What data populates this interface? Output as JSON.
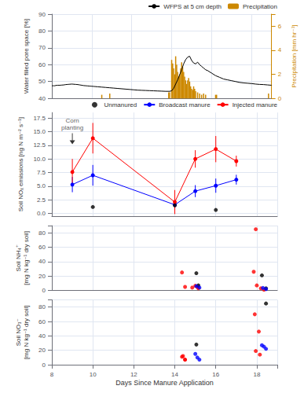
{
  "chart_data": [
    {
      "type": "line",
      "ylabel": "Water filled pore space [%]",
      "y2label": "Precipitation [mm hr⁻¹]",
      "xlim": [
        8,
        19
      ],
      "xticks": [
        8,
        10,
        12,
        14,
        16,
        18
      ],
      "ylim": [
        40,
        90
      ],
      "yticks": [
        40,
        50,
        60,
        70,
        80,
        90
      ],
      "y2lim": [
        0,
        7
      ],
      "y2ticks": [
        0,
        2,
        4,
        6
      ],
      "grid": true,
      "legend": "upper right",
      "tick_labels": "y",
      "series": [
        {
          "name": "WFPS at 5 cm depth",
          "type": "line",
          "color": "black",
          "marker": "none",
          "x": [
            8.0,
            8.05,
            8.1,
            8.15,
            8.2,
            8.3,
            8.4,
            8.5,
            8.6,
            8.7,
            8.8,
            8.9,
            9.0,
            9.1,
            9.2,
            9.3,
            9.4,
            9.5,
            9.6,
            9.7,
            9.8,
            9.9,
            10.0,
            10.1,
            10.2,
            10.3,
            10.5,
            10.7,
            10.9,
            11.1,
            11.3,
            11.5,
            11.7,
            11.9,
            12.1,
            12.3,
            12.5,
            12.7,
            12.9,
            13.1,
            13.3,
            13.5,
            13.7,
            13.9,
            14.0,
            14.1,
            14.2,
            14.3,
            14.4,
            14.5,
            14.6,
            14.7,
            14.8,
            14.9,
            15.0,
            15.1,
            15.2,
            15.3,
            15.4,
            15.5,
            15.6,
            15.7,
            15.8,
            16.0,
            16.2,
            16.4,
            16.6,
            16.8,
            17.0,
            17.2,
            17.4,
            17.6,
            17.8,
            18.0,
            18.2,
            18.4,
            18.6,
            18.8,
            19.0
          ],
          "values": [
            47.5,
            47.5,
            47.5,
            47.5,
            47.7,
            47.8,
            47.8,
            47.9,
            48.0,
            48.2,
            48.3,
            48.4,
            48.5,
            48.4,
            48.3,
            48.2,
            48.0,
            47.8,
            47.6,
            47.5,
            47.4,
            47.3,
            47.2,
            47.1,
            47.0,
            46.9,
            46.7,
            46.5,
            46.3,
            46.1,
            45.9,
            45.7,
            45.5,
            45.3,
            45.1,
            44.9,
            44.8,
            44.7,
            44.6,
            44.5,
            44.4,
            44.3,
            44.2,
            44.2,
            44.5,
            46.0,
            48.5,
            51.0,
            54.0,
            57.0,
            60.5,
            63.0,
            64.5,
            65.0,
            62.5,
            61.0,
            60.5,
            61.5,
            60.0,
            59.0,
            58.0,
            57.0,
            56.5,
            55.0,
            53.5,
            52.5,
            51.5,
            51.0,
            50.5,
            50.0,
            49.5,
            49.2,
            49.0,
            48.8,
            48.5,
            48.3,
            48.2,
            48.0,
            47.8
          ]
        },
        {
          "name": "Precipitation",
          "type": "bar",
          "color": "#CC8800",
          "axis": "y2",
          "x": [
            10.5,
            10.9,
            13.85,
            13.9,
            14.0,
            14.05,
            14.1,
            14.15,
            14.2,
            14.25,
            14.3,
            14.35,
            14.4,
            14.45,
            14.5,
            14.55,
            14.6,
            14.65,
            14.7,
            14.75,
            14.8,
            14.85,
            14.9,
            14.95,
            15.0,
            15.05,
            15.1,
            15.15,
            15.2,
            15.3,
            15.4,
            15.5,
            15.6,
            15.7,
            16.2,
            16.25,
            18.85
          ],
          "values": [
            0.3,
            0.4,
            0.5,
            0.5,
            3.2,
            2.9,
            2.5,
            2.0,
            3.5,
            2.8,
            2.2,
            1.8,
            2.0,
            2.5,
            3.0,
            2.6,
            2.2,
            1.8,
            1.5,
            1.2,
            1.5,
            1.7,
            1.4,
            1.0,
            0.8,
            0.7,
            1.0,
            0.8,
            0.6,
            0.5,
            0.4,
            0.3,
            0.4,
            0.3,
            0.3,
            0.3,
            0.4
          ]
        }
      ]
    },
    {
      "type": "line",
      "ylabel": "Soil NOₓ emissions [ng N m⁻² s⁻¹]",
      "xlim": [
        8,
        19
      ],
      "xticks": [
        8,
        10,
        12,
        14,
        16,
        18
      ],
      "ylim": [
        -0.5,
        18.5
      ],
      "yticks": [
        {
          "value": 0.0,
          "label": "0.0"
        },
        2.5,
        {
          "value": 5.0,
          "label": "5.0"
        },
        7.5,
        {
          "value": 10.0,
          "label": "10.0"
        },
        12.5,
        {
          "value": 15.0,
          "label": "15.0"
        },
        17.5
      ],
      "grid": true,
      "legend": "upper right",
      "tick_labels": "y",
      "annotations": [
        {
          "text": "Corn\nplanting",
          "x": 9.0,
          "y": 12.7
        }
      ],
      "series": [
        {
          "name": "Unmanured",
          "type": "scatter",
          "color": "black",
          "marker": "circle",
          "x": [
            10,
            14,
            16
          ],
          "values": [
            1.2,
            1.5,
            0.65
          ]
        },
        {
          "name": "Broadcast manure",
          "type": "line",
          "color": "blue",
          "marker": "circle",
          "x": [
            9,
            10,
            14,
            15,
            16,
            17
          ],
          "values": [
            5.3,
            7.0,
            1.6,
            4.1,
            5.1,
            6.2
          ],
          "errors": [
            1.4,
            1.9,
            0.9,
            1.1,
            1.3,
            0.9
          ]
        },
        {
          "name": "Injected manure",
          "type": "line",
          "color": "red",
          "marker": "circle",
          "x": [
            9,
            10,
            14,
            15,
            16,
            17
          ],
          "values": [
            7.6,
            13.8,
            2.1,
            10.0,
            11.8,
            9.6
          ],
          "errors": [
            2.4,
            2.8,
            2.2,
            1.6,
            2.4,
            1.0
          ]
        }
      ]
    },
    {
      "type": "scatter",
      "ylabel": "Soil NH₄⁺\n[mg N kg⁻¹ dry soil]",
      "xlim": [
        8,
        19
      ],
      "xticks": [
        8,
        10,
        12,
        14,
        16,
        18
      ],
      "ylim": [
        0,
        90
      ],
      "yticks": [
        0,
        20,
        40,
        60,
        80
      ],
      "grid": true,
      "tick_labels": "y",
      "marker": "circle",
      "series": [
        {
          "color": "red",
          "x": [
            14.35,
            14.5,
            14.85,
            15.0,
            15.1,
            15.15,
            17.85,
            18.0,
            18.2,
            18.35
          ],
          "values": [
            25.0,
            5.0,
            4.0,
            6.5,
            5.0,
            3.0,
            26.0,
            7.0,
            3.0,
            1.0
          ]
        },
        {
          "color": "black",
          "x": [
            15.05,
            15.15,
            18.25,
            18.45
          ],
          "values": [
            24.0,
            7.0,
            21.0,
            3.0
          ]
        },
        {
          "color": "blue",
          "x": [
            15.05,
            15.2,
            18.3,
            18.45
          ],
          "values": [
            6.0,
            4.0,
            3.5,
            2.0
          ]
        },
        {
          "color": "red",
          "x": [
            17.95
          ],
          "values": [
            85.0
          ]
        }
      ]
    },
    {
      "type": "scatter",
      "ylabel": "Soil NO₃⁻\n[mg N kg⁻¹ dry soil]",
      "xlabel": "Days Since Manure Application",
      "xlim": [
        8,
        19
      ],
      "xticks": [
        8,
        10,
        12,
        14,
        16,
        18
      ],
      "ylim": [
        0,
        90
      ],
      "yticks": [
        0,
        20,
        40,
        60,
        80
      ],
      "grid": true,
      "marker": "circle",
      "series": [
        {
          "color": "red",
          "x": [
            14.35,
            14.5,
            17.9,
            18.1
          ],
          "values": [
            11.0,
            7.0,
            70.0,
            46.0
          ]
        },
        {
          "color": "black",
          "x": [
            15.05,
            18.45
          ],
          "values": [
            28.0,
            85.0
          ]
        },
        {
          "color": "blue",
          "x": [
            15.0,
            15.1,
            15.2,
            18.25,
            18.35,
            18.45
          ],
          "values": [
            15.0,
            10.0,
            7.0,
            27.0,
            25.0,
            22.0
          ]
        },
        {
          "color": "red",
          "x": [
            14.4,
            14.5,
            17.95,
            18.15
          ],
          "values": [
            12.0,
            7.0,
            19.0,
            14.0
          ]
        }
      ]
    }
  ]
}
